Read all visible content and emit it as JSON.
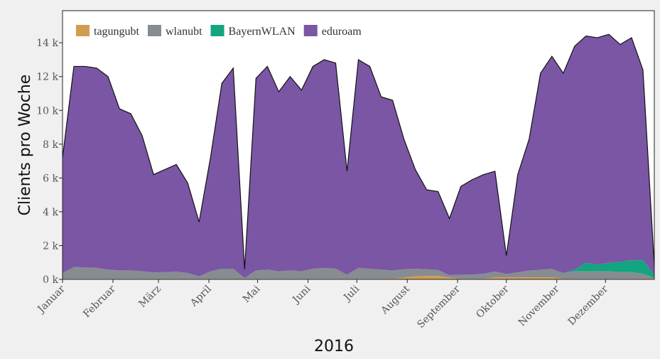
{
  "chart_data": {
    "type": "area",
    "stacked": true,
    "x": [
      0,
      1,
      2,
      3,
      4,
      5,
      6,
      7,
      8,
      9,
      10,
      11,
      12,
      13,
      14,
      15,
      16,
      17,
      18,
      19,
      20,
      21,
      22,
      23,
      24,
      25,
      26,
      27,
      28,
      29,
      30,
      31,
      32,
      33,
      34,
      35,
      36,
      37,
      38,
      39,
      40,
      41,
      42,
      43,
      44,
      45,
      46,
      47,
      48,
      49,
      50,
      51,
      52
    ],
    "xlim": [
      0,
      52
    ],
    "xticks": [
      {
        "value": 0,
        "label": "Januar"
      },
      {
        "value": 4.43,
        "label": "Februar"
      },
      {
        "value": 8.43,
        "label": "März"
      },
      {
        "value": 12.86,
        "label": "April"
      },
      {
        "value": 17.14,
        "label": "Mai"
      },
      {
        "value": 21.57,
        "label": "Juni"
      },
      {
        "value": 25.86,
        "label": "Juli"
      },
      {
        "value": 30.29,
        "label": "August"
      },
      {
        "value": 34.71,
        "label": "September"
      },
      {
        "value": 39,
        "label": "Oktober"
      },
      {
        "value": 43.43,
        "label": "November"
      },
      {
        "value": 47.71,
        "label": "Dezember"
      }
    ],
    "xlabel": "2016",
    "ylabel": "Clients pro Woche",
    "ylim": [
      0,
      15.9
    ],
    "yticks": [
      {
        "value": 0,
        "label": "0 k"
      },
      {
        "value": 2,
        "label": "2 k"
      },
      {
        "value": 4,
        "label": "4 k"
      },
      {
        "value": 6,
        "label": "6 k"
      },
      {
        "value": 8,
        "label": "8 k"
      },
      {
        "value": 10,
        "label": "10 k"
      },
      {
        "value": 12,
        "label": "12 k"
      },
      {
        "value": 14,
        "label": "14 k"
      }
    ],
    "legend": "upper left",
    "series": [
      {
        "name": "tagungubt",
        "color": "#d29c4e",
        "values": [
          0.03,
          0.03,
          0.03,
          0.03,
          0.03,
          0.03,
          0.03,
          0.03,
          0.03,
          0.03,
          0.03,
          0.03,
          0.03,
          0.03,
          0.03,
          0.03,
          0.03,
          0.03,
          0.03,
          0.03,
          0.03,
          0.03,
          0.03,
          0.03,
          0.03,
          0.03,
          0.03,
          0.03,
          0.03,
          0.03,
          0.1,
          0.18,
          0.2,
          0.2,
          0.1,
          0.03,
          0.03,
          0.03,
          0.12,
          0.12,
          0.12,
          0.12,
          0.12,
          0.12,
          0.03,
          0.03,
          0.03,
          0.03,
          0.03,
          0.03,
          0.03,
          0.03,
          0.03
        ]
      },
      {
        "name": "wlanubt",
        "color": "#878c91",
        "values": [
          0.35,
          0.7,
          0.68,
          0.65,
          0.55,
          0.5,
          0.5,
          0.45,
          0.38,
          0.4,
          0.42,
          0.35,
          0.15,
          0.45,
          0.6,
          0.6,
          0.05,
          0.5,
          0.55,
          0.45,
          0.5,
          0.45,
          0.6,
          0.65,
          0.6,
          0.25,
          0.65,
          0.6,
          0.55,
          0.5,
          0.5,
          0.45,
          0.4,
          0.35,
          0.15,
          0.25,
          0.25,
          0.3,
          0.35,
          0.2,
          0.3,
          0.4,
          0.45,
          0.5,
          0.35,
          0.45,
          0.45,
          0.45,
          0.45,
          0.4,
          0.4,
          0.3,
          0.05
        ]
      },
      {
        "name": "BayernWLAN",
        "color": "#12a57f",
        "values": [
          0,
          0,
          0,
          0,
          0,
          0,
          0,
          0,
          0,
          0,
          0,
          0,
          0,
          0,
          0,
          0,
          0,
          0,
          0,
          0,
          0,
          0,
          0,
          0,
          0,
          0,
          0,
          0,
          0,
          0,
          0,
          0,
          0,
          0,
          0,
          0,
          0,
          0,
          0,
          0,
          0,
          0,
          0,
          0,
          0,
          0.1,
          0.5,
          0.4,
          0.5,
          0.6,
          0.7,
          0.8,
          0.2
        ]
      },
      {
        "name": "eduroam",
        "color": "#7b56a4",
        "values": [
          6.82,
          11.87,
          11.89,
          11.82,
          11.42,
          9.57,
          9.27,
          8.02,
          5.79,
          6.07,
          6.35,
          5.32,
          3.22,
          6.72,
          10.97,
          11.87,
          0.52,
          11.37,
          12.02,
          10.62,
          11.47,
          10.72,
          11.97,
          12.32,
          12.17,
          6.12,
          12.32,
          11.97,
          10.22,
          10.07,
          7.7,
          5.87,
          4.7,
          4.65,
          3.35,
          5.22,
          5.62,
          5.87,
          5.93,
          1.08,
          5.78,
          7.78,
          11.63,
          12.58,
          11.82,
          13.22,
          13.42,
          13.42,
          13.52,
          12.87,
          13.17,
          11.27,
          0.52
        ]
      }
    ]
  }
}
